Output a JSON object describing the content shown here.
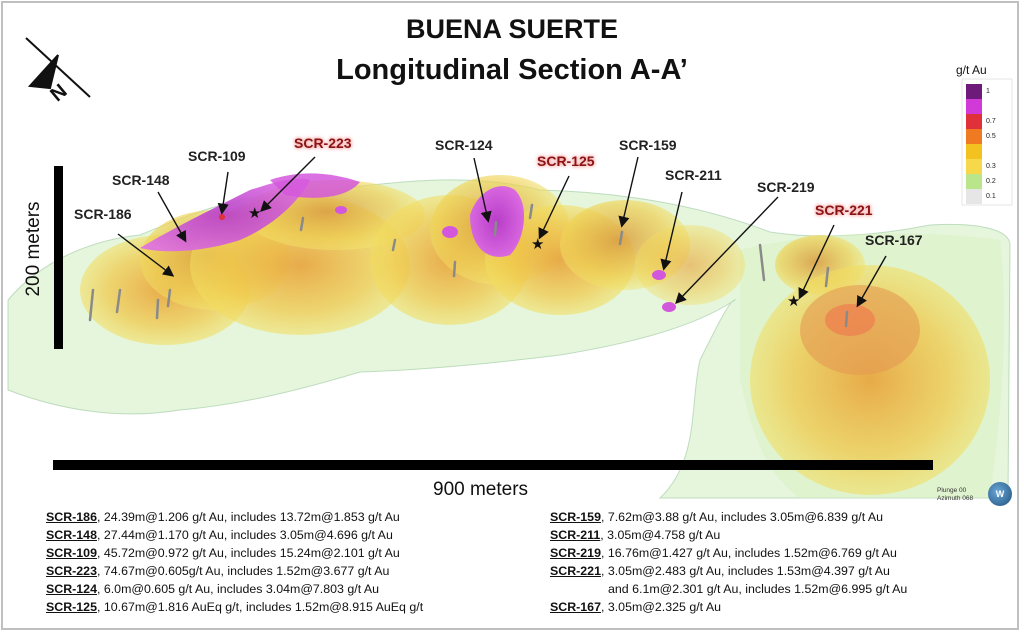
{
  "title_line1": "BUENA SUERTE",
  "title_line2": "Longitudinal Section A-A’",
  "north_label": "N",
  "scale": {
    "vertical": "200 meters",
    "horizontal": "900 meters"
  },
  "legend": {
    "title": "g/t Au",
    "entries": [
      {
        "value": "1",
        "color": "#6e1a7a"
      },
      {
        "value": "",
        "color": "#d23ad8"
      },
      {
        "value": "0.7",
        "color": "#e0303a"
      },
      {
        "value": "0.5",
        "color": "#f07a22"
      },
      {
        "value": "",
        "color": "#f4c21e"
      },
      {
        "value": "0.3",
        "color": "#f6d84a"
      },
      {
        "value": "0.2",
        "color": "#b9e68a"
      },
      {
        "value": "0.1",
        "color": "#e6e6e6"
      }
    ]
  },
  "drillholes": [
    {
      "id": "SCR-186",
      "highlight": false
    },
    {
      "id": "SCR-148",
      "highlight": false
    },
    {
      "id": "SCR-109",
      "highlight": false
    },
    {
      "id": "SCR-223",
      "highlight": true
    },
    {
      "id": "SCR-124",
      "highlight": false
    },
    {
      "id": "SCR-125",
      "highlight": true
    },
    {
      "id": "SCR-159",
      "highlight": false
    },
    {
      "id": "SCR-211",
      "highlight": false
    },
    {
      "id": "SCR-219",
      "highlight": false
    },
    {
      "id": "SCR-221",
      "highlight": true
    },
    {
      "id": "SCR-167",
      "highlight": false
    }
  ],
  "results_left": [
    {
      "hole": "SCR-186",
      "text": ", 24.39m@1.206 g/t Au, includes 13.72m@1.853 g/t Au"
    },
    {
      "hole": "SCR-148",
      "text": ", 27.44m@1.170 g/t Au, includes 3.05m@4.696 g/t Au"
    },
    {
      "hole": "SCR-109",
      "text": ", 45.72m@0.972 g/t Au, includes 15.24m@2.101 g/t Au"
    },
    {
      "hole": "SCR-223",
      "text": ", 74.67m@0.605g/t Au, includes 1.52m@3.677 g/t Au"
    },
    {
      "hole": "SCR-124",
      "text": ", 6.0m@0.605 g/t Au, includes 3.04m@7.803 g/t Au"
    },
    {
      "hole": "SCR-125",
      "text": ", 10.67m@1.816 AuEq g/t, includes 1.52m@8.915 AuEq g/t"
    }
  ],
  "results_right": [
    {
      "hole": "SCR-159",
      "text": ", 7.62m@3.88 g/t Au, includes 3.05m@6.839 g/t Au"
    },
    {
      "hole": "SCR-211",
      "text": ", 3.05m@4.758 g/t Au"
    },
    {
      "hole": "SCR-219",
      "text": ", 16.76m@1.427 g/t Au, includes 1.52m@6.769 g/t Au"
    },
    {
      "hole": "SCR-221",
      "text": ", 3.05m@2.483 g/t Au, includes 1.53m@4.397 g/t Au"
    },
    {
      "hole": "",
      "text": "and 6.1m@2.301 g/t Au, includes 1.52m@6.995 g/t Au"
    },
    {
      "hole": "SCR-167",
      "text": ", 3.05m@2.325 g/t Au"
    }
  ],
  "plunge_text": "Plunge 00",
  "azimuth_text": "Azimuth 068"
}
